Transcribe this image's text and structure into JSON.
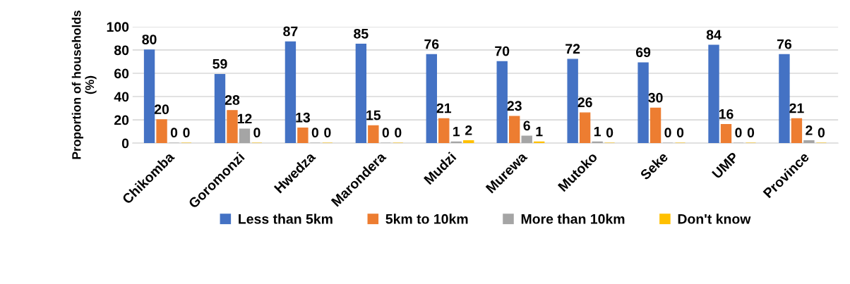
{
  "chart_data": {
    "type": "bar",
    "ylabel": "Proportion of households (%)",
    "categories": [
      "Chikomba",
      "Goromonzi",
      "Hwedza",
      "Marondera",
      "Mudzi",
      "Murewa",
      "Mutoko",
      "Seke",
      "UMP",
      "Province"
    ],
    "series": [
      {
        "name": "Less than 5km",
        "color": "#4472c4",
        "values": [
          80,
          59,
          87,
          85,
          76,
          70,
          72,
          69,
          84,
          76
        ]
      },
      {
        "name": "5km to 10km",
        "color": "#ed7d31",
        "values": [
          20,
          28,
          13,
          15,
          21,
          23,
          26,
          30,
          16,
          21
        ]
      },
      {
        "name": "More than 10km",
        "color": "#a5a5a5",
        "values": [
          0,
          12,
          0,
          0,
          1,
          6,
          1,
          0,
          0,
          2
        ]
      },
      {
        "name": "Don't know",
        "color": "#ffc000",
        "values": [
          0,
          0,
          0,
          0,
          2,
          1,
          0,
          0,
          0,
          0
        ]
      }
    ],
    "ylim": [
      0,
      100
    ],
    "yticks": [
      0,
      20,
      40,
      60,
      80,
      100
    ],
    "grid": "y",
    "legend": "bottom",
    "data_labels": true
  }
}
